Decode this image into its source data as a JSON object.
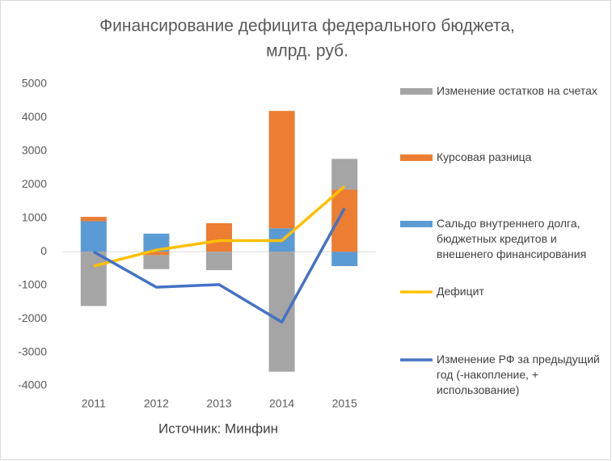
{
  "chart_data": {
    "type": "stacked-bar-line",
    "title": [
      "Финансирование дефицита федерального бюджета,",
      "млрд. руб."
    ],
    "source": "Источник: Минфин",
    "categories": [
      "2011",
      "2012",
      "2013",
      "2014",
      "2015"
    ],
    "series": [
      {
        "name": "Изменение остатков на счетах",
        "color": "#a5a5a5",
        "kind": "bar",
        "values": [
          -1620,
          -420,
          -550,
          -3580,
          920
        ]
      },
      {
        "name": "Курсовая разница",
        "color": "#ed7d31",
        "kind": "bar",
        "values": [
          130,
          -100,
          850,
          3500,
          1850
        ]
      },
      {
        "name": "Сальдо внутреннего долга, бюджетных кредитов и внешенего финансирования",
        "color": "#5b9bd5",
        "kind": "bar",
        "values": [
          910,
          540,
          0,
          700,
          -430
        ]
      },
      {
        "name": "Дефицит",
        "color": "#ffc000",
        "kind": "line",
        "values": [
          -430,
          50,
          330,
          330,
          1950
        ]
      },
      {
        "name": "Изменение РФ за предыдущий год (-накопление, + использование)",
        "color": "#4472c4",
        "kind": "line",
        "values": [
          0,
          -1060,
          -980,
          -2100,
          1300
        ]
      }
    ],
    "ylim": [
      -4000,
      5000
    ],
    "yticks": [
      5000,
      4000,
      3000,
      2000,
      1000,
      0,
      -1000,
      -2000,
      -3000,
      -4000
    ],
    "grid": false
  }
}
